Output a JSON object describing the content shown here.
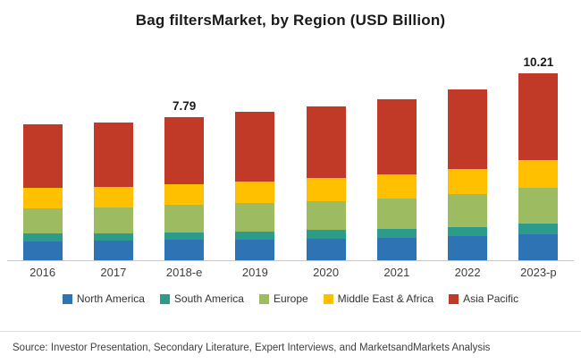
{
  "title": "Bag filtersMarket, by Region (USD Billion)",
  "source": "Source: Investor Presentation, Secondary Literature, Expert Interviews, and MarketsandMarkets Analysis",
  "chart_data": {
    "type": "bar",
    "stacked": true,
    "title": "Bag filtersMarket, by Region (USD Billion)",
    "xlabel": "",
    "ylabel": "USD Billion",
    "ylim": [
      0,
      11
    ],
    "grid": false,
    "legend_position": "bottom",
    "categories": [
      "2016",
      "2017",
      "2018-e",
      "2019",
      "2020",
      "2021",
      "2022",
      "2023-p"
    ],
    "series": [
      {
        "name": "North America",
        "color": "#2e74b5",
        "values": [
          1.05,
          1.06,
          1.1,
          1.14,
          1.18,
          1.24,
          1.31,
          1.43
        ]
      },
      {
        "name": "South America",
        "color": "#2d9b8a",
        "values": [
          0.4,
          0.41,
          0.43,
          0.44,
          0.46,
          0.48,
          0.51,
          0.56
        ]
      },
      {
        "name": "Europe",
        "color": "#9dbb61",
        "values": [
          1.4,
          1.42,
          1.48,
          1.53,
          1.59,
          1.67,
          1.77,
          1.94
        ]
      },
      {
        "name": "Middle East & Africa",
        "color": "#ffc000",
        "values": [
          1.1,
          1.12,
          1.16,
          1.2,
          1.24,
          1.31,
          1.39,
          1.52
        ]
      },
      {
        "name": "Asia Pacific",
        "color": "#c13a28",
        "values": [
          3.45,
          3.49,
          3.62,
          3.77,
          3.9,
          4.1,
          4.35,
          4.76
        ]
      }
    ],
    "totals": [
      7.4,
      7.5,
      7.79,
      8.08,
      8.37,
      8.8,
      9.33,
      10.21
    ],
    "bar_labels": [
      "",
      "",
      "7.79",
      "",
      "",
      "",
      "",
      "10.21"
    ]
  }
}
